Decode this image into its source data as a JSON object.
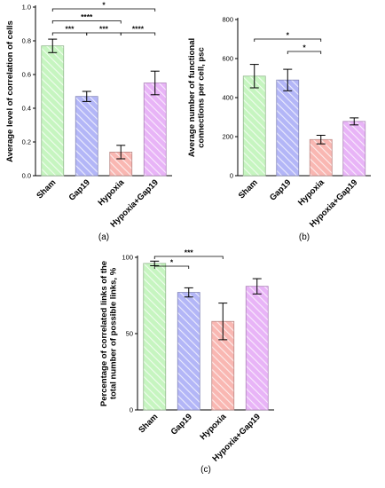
{
  "chart_data": [
    {
      "type": "bar",
      "panel_label": "(a)",
      "categories": [
        "Sham",
        "Gap19",
        "Hypoxia",
        "Hypoxia+Gap19"
      ],
      "values": [
        0.77,
        0.47,
        0.14,
        0.55
      ],
      "errors": [
        0.04,
        0.03,
        0.04,
        0.07
      ],
      "ylabel": "Average level of correlation of cells",
      "xlabel": "",
      "ylim": [
        0,
        1.0
      ],
      "yticks": [
        "0.0",
        "0.2",
        "0.4",
        "0.6",
        "0.8",
        "1.0"
      ],
      "colors": [
        "#c6f5c0",
        "#b3b6f7",
        "#f9b7b2",
        "#e8b4f7"
      ],
      "significance": [
        {
          "from": 0,
          "to": 3,
          "label": "*"
        },
        {
          "from": 0,
          "to": 2,
          "label": "****"
        },
        {
          "from": 0,
          "to": 1,
          "label": "***"
        },
        {
          "from": 1,
          "to": 2,
          "label": "***"
        },
        {
          "from": 2,
          "to": 3,
          "label": "****"
        }
      ]
    },
    {
      "type": "bar",
      "panel_label": "(b)",
      "categories": [
        "Sham",
        "Gap19",
        "Hypoxia",
        "Hypoxia+Gap19"
      ],
      "values": [
        510,
        490,
        185,
        278
      ],
      "errors": [
        60,
        55,
        22,
        18
      ],
      "ylabel": "Average number of functional connections per cell, psc",
      "xlabel": "",
      "ylim": [
        0,
        800
      ],
      "yticks": [
        "0",
        "200",
        "400",
        "600",
        "800"
      ],
      "colors": [
        "#c6f5c0",
        "#b3b6f7",
        "#f9b7b2",
        "#e8b4f7"
      ],
      "significance": [
        {
          "from": 0,
          "to": 2,
          "label": "*"
        },
        {
          "from": 1,
          "to": 2,
          "label": "*"
        }
      ]
    },
    {
      "type": "bar",
      "panel_label": "(c)",
      "categories": [
        "Sham",
        "Gap19",
        "Hypoxia",
        "Hypoxia+Gap19"
      ],
      "values": [
        96,
        77,
        58,
        81
      ],
      "errors": [
        1.5,
        3,
        12,
        5
      ],
      "ylabel": "Percentage of correlated links of the total number of possible links, %",
      "xlabel": "",
      "ylim": [
        0,
        100
      ],
      "yticks": [
        "0",
        "50",
        "100"
      ],
      "colors": [
        "#c6f5c0",
        "#b3b6f7",
        "#f9b7b2",
        "#e8b4f7"
      ],
      "significance": [
        {
          "from": 0,
          "to": 2,
          "label": "***"
        },
        {
          "from": 0,
          "to": 1,
          "label": "*"
        }
      ]
    }
  ]
}
